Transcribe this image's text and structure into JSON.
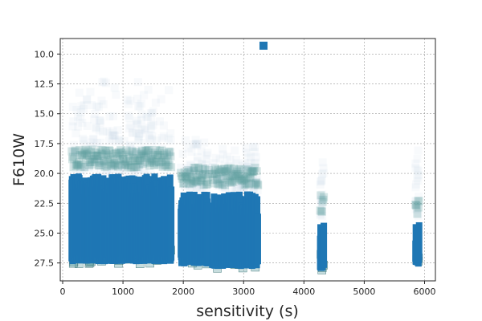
{
  "chart_data": {
    "type": "scatter",
    "title": "",
    "xlabel": "sensitivity (s)",
    "ylabel": "F610W",
    "xlim": [
      -40,
      6180
    ],
    "ylim": [
      29.0,
      8.7
    ],
    "y_inverted": true,
    "grid": true,
    "legend": "none",
    "x_ticks": [
      0,
      1000,
      2000,
      3000,
      4000,
      5000,
      6000
    ],
    "y_ticks": [
      10.0,
      12.5,
      15.0,
      17.5,
      20.0,
      22.5,
      25.0,
      27.5
    ],
    "marker": "square",
    "colors": {
      "main": "#1f77b4",
      "fringe": "#5f9ea0",
      "halo": "#c9d3e6",
      "grid": "#9a9a9a"
    },
    "clusters": [
      {
        "x_range": [
          150,
          1800
        ],
        "y_dense": [
          20.0,
          27.6
        ],
        "y_sparse": [
          12.0,
          20.0
        ],
        "description_points": 1
      },
      {
        "x_range": [
          1960,
          2420
        ],
        "y_dense": [
          21.5,
          27.8
        ],
        "y_sparse": [
          17.0,
          21.5
        ]
      },
      {
        "x_range": [
          2480,
          3240
        ],
        "y_dense": [
          21.5,
          28.0
        ],
        "y_sparse": [
          17.5,
          21.5
        ]
      },
      {
        "x_range": [
          4270,
          4330
        ],
        "y_dense": [
          23.8,
          28.2
        ],
        "y_sparse": [
          18.0,
          23.8
        ]
      },
      {
        "x_range": [
          5850,
          5910
        ],
        "y_dense": [
          24.0,
          28.0
        ],
        "y_sparse": [
          18.0,
          24.0
        ]
      }
    ],
    "outliers": [
      {
        "x": 3330,
        "y": 9.3
      }
    ]
  }
}
